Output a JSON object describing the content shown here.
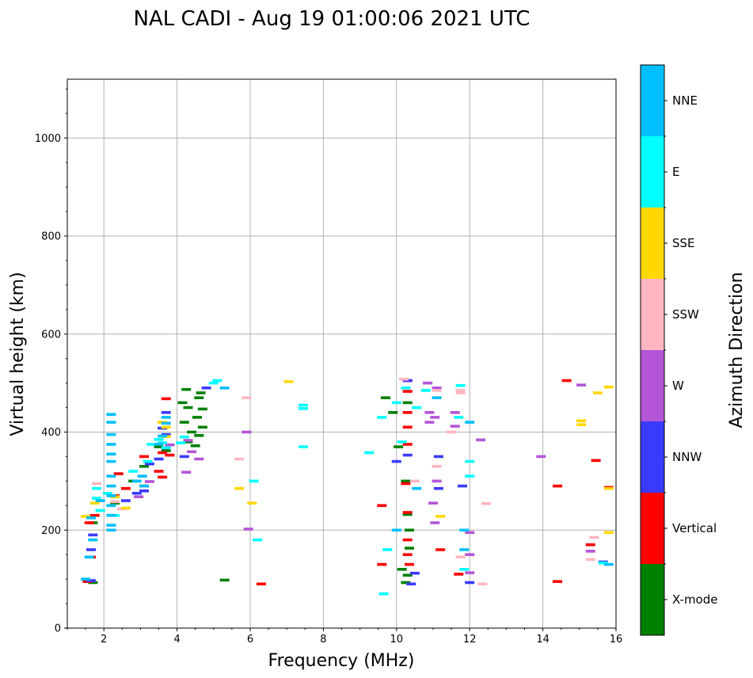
{
  "chart_data": {
    "type": "scatter",
    "title": "NAL CADI - Aug 19 01:00:06 2021 UTC",
    "xlabel": "Frequency (MHz)",
    "ylabel": "Virtual height (km)",
    "xlim": [
      1,
      16
    ],
    "ylim": [
      0,
      1120
    ],
    "xticks": [
      2,
      4,
      6,
      8,
      10,
      12,
      14,
      16
    ],
    "yticks": [
      0,
      200,
      400,
      600,
      800,
      1000
    ],
    "grid": true,
    "colorbar": {
      "label": "Azimuth Direction",
      "categories": [
        {
          "name": "X-mode",
          "color": "#008000"
        },
        {
          "name": "Vertical",
          "color": "#ff0000"
        },
        {
          "name": "NNW",
          "color": "#3a3aff"
        },
        {
          "name": "W",
          "color": "#b455d8"
        },
        {
          "name": "SSW",
          "color": "#ffb6c1"
        },
        {
          "name": "SSE",
          "color": "#ffd700"
        },
        {
          "name": "E",
          "color": "#00ffff"
        },
        {
          "name": "NNE",
          "color": "#00bfff"
        }
      ]
    },
    "series": [
      {
        "name": "X-mode",
        "points": [
          [
            4.25,
            487
          ],
          [
            4.6,
            470
          ],
          [
            4.15,
            460
          ],
          [
            4.3,
            450
          ],
          [
            4.55,
            430
          ],
          [
            4.2,
            420
          ],
          [
            4.4,
            400
          ],
          [
            4.6,
            393
          ],
          [
            4.3,
            380
          ],
          [
            4.5,
            372
          ],
          [
            3.5,
            370
          ],
          [
            3.7,
            362
          ],
          [
            3.1,
            330
          ],
          [
            2.8,
            300
          ],
          [
            2.3,
            255
          ],
          [
            1.7,
            215
          ],
          [
            1.7,
            93
          ],
          [
            5.3,
            98
          ],
          [
            10.3,
            460
          ],
          [
            10.05,
            370
          ],
          [
            10.25,
            300
          ],
          [
            10.35,
            200
          ],
          [
            10.35,
            163
          ],
          [
            10.15,
            120
          ],
          [
            10.3,
            108
          ],
          [
            9.7,
            470
          ],
          [
            9.9,
            440
          ],
          [
            10.3,
            232
          ],
          [
            10.25,
            93
          ],
          [
            4.65,
            480
          ],
          [
            4.7,
            447
          ],
          [
            4.7,
            410
          ]
        ]
      },
      {
        "name": "Vertical",
        "points": [
          [
            3.7,
            468
          ],
          [
            3.6,
            358
          ],
          [
            3.8,
            353
          ],
          [
            3.1,
            350
          ],
          [
            3.5,
            320
          ],
          [
            3.1,
            290
          ],
          [
            2.6,
            285
          ],
          [
            2.4,
            315
          ],
          [
            2.3,
            270
          ],
          [
            1.75,
            230
          ],
          [
            1.6,
            215
          ],
          [
            1.65,
            145
          ],
          [
            1.55,
            95
          ],
          [
            6.3,
            90
          ],
          [
            10.3,
            505
          ],
          [
            10.3,
            483
          ],
          [
            10.3,
            440
          ],
          [
            10.3,
            410
          ],
          [
            10.3,
            375
          ],
          [
            10.25,
            295
          ],
          [
            9.6,
            250
          ],
          [
            10.3,
            236
          ],
          [
            10.3,
            180
          ],
          [
            10.3,
            150
          ],
          [
            10.35,
            130
          ],
          [
            9.6,
            130
          ],
          [
            11.2,
            160
          ],
          [
            11.7,
            110
          ],
          [
            14.4,
            95
          ],
          [
            14.4,
            290
          ],
          [
            14.65,
            505
          ],
          [
            15.45,
            342
          ],
          [
            15.3,
            170
          ],
          [
            15.8,
            287
          ],
          [
            3.6,
            308
          ]
        ]
      },
      {
        "name": "NNW",
        "points": [
          [
            3.7,
            440
          ],
          [
            3.6,
            408
          ],
          [
            3.7,
            395
          ],
          [
            3.7,
            368
          ],
          [
            3.5,
            345
          ],
          [
            3.25,
            335
          ],
          [
            3.1,
            280
          ],
          [
            2.9,
            275
          ],
          [
            2.6,
            260
          ],
          [
            1.7,
            190
          ],
          [
            1.65,
            160
          ],
          [
            1.65,
            97
          ],
          [
            4.2,
            350
          ],
          [
            10.3,
            505
          ],
          [
            10.0,
            340
          ],
          [
            10.3,
            353
          ],
          [
            10.4,
            90
          ],
          [
            11.15,
            285
          ],
          [
            11.15,
            350
          ],
          [
            11.8,
            290
          ],
          [
            12.0,
            93
          ],
          [
            15.65,
            135
          ],
          [
            4.8,
            490
          ],
          [
            10.5,
            112
          ]
        ]
      },
      {
        "name": "W",
        "points": [
          [
            4.25,
            318
          ],
          [
            4.3,
            383
          ],
          [
            4.4,
            360
          ],
          [
            4.6,
            345
          ],
          [
            3.8,
            374
          ],
          [
            2.95,
            268
          ],
          [
            3.25,
            299
          ],
          [
            5.9,
            400
          ],
          [
            5.95,
            202
          ],
          [
            10.85,
            500
          ],
          [
            11.1,
            490
          ],
          [
            10.9,
            440
          ],
          [
            11.05,
            430
          ],
          [
            10.9,
            420
          ],
          [
            11.1,
            300
          ],
          [
            11.6,
            440
          ],
          [
            12.3,
            384
          ],
          [
            12.0,
            195
          ],
          [
            12.0,
            113
          ],
          [
            11.6,
            412
          ],
          [
            11.0,
            255
          ],
          [
            15.3,
            157
          ],
          [
            15.05,
            496
          ],
          [
            13.95,
            350
          ],
          [
            11.05,
            215
          ],
          [
            12.0,
            150
          ]
        ]
      },
      {
        "name": "SSW",
        "points": [
          [
            1.8,
            295
          ],
          [
            2.2,
            270
          ],
          [
            2.3,
            258
          ],
          [
            2.5,
            243
          ],
          [
            5.7,
            345
          ],
          [
            5.9,
            470
          ],
          [
            10.2,
            508
          ],
          [
            10.5,
            300
          ],
          [
            11.1,
            485
          ],
          [
            11.1,
            330
          ],
          [
            11.75,
            485
          ],
          [
            11.75,
            480
          ],
          [
            12.45,
            254
          ],
          [
            12.35,
            90
          ],
          [
            11.5,
            400
          ],
          [
            15.4,
            185
          ],
          [
            15.3,
            140
          ],
          [
            11.75,
            145
          ]
        ]
      },
      {
        "name": "SSE",
        "points": [
          [
            1.75,
            255
          ],
          [
            1.5,
            228
          ],
          [
            2.3,
            268
          ],
          [
            2.6,
            245
          ],
          [
            3.6,
            420
          ],
          [
            3.7,
            410
          ],
          [
            3.7,
            391
          ],
          [
            5.7,
            285
          ],
          [
            7.05,
            503
          ],
          [
            15.05,
            423
          ],
          [
            15.05,
            415
          ],
          [
            15.5,
            480
          ],
          [
            15.8,
            492
          ],
          [
            15.8,
            285
          ],
          [
            15.8,
            195
          ],
          [
            11.2,
            228
          ],
          [
            6.05,
            255
          ]
        ]
      },
      {
        "name": "E",
        "points": [
          [
            1.8,
            285
          ],
          [
            1.8,
            265
          ],
          [
            1.9,
            240
          ],
          [
            2.1,
            275
          ],
          [
            2.3,
            230
          ],
          [
            2.8,
            320
          ],
          [
            3.2,
            340
          ],
          [
            3.3,
            375
          ],
          [
            3.6,
            378
          ],
          [
            3.7,
            368
          ],
          [
            3.5,
            385
          ],
          [
            4.1,
            378
          ],
          [
            4.2,
            390
          ],
          [
            6.2,
            180
          ],
          [
            7.45,
            455
          ],
          [
            7.45,
            448
          ],
          [
            7.45,
            370
          ],
          [
            9.25,
            358
          ],
          [
            10.0,
            460
          ],
          [
            10.15,
            380
          ],
          [
            9.6,
            430
          ],
          [
            9.75,
            160
          ],
          [
            10.25,
            490
          ],
          [
            10.55,
            450
          ],
          [
            10.8,
            485
          ],
          [
            11.7,
            430
          ],
          [
            11.75,
            495
          ],
          [
            11.85,
            120
          ],
          [
            12.0,
            340
          ],
          [
            12.0,
            310
          ],
          [
            9.65,
            70
          ],
          [
            15.65,
            133
          ],
          [
            5.0,
            500
          ],
          [
            5.1,
            505
          ],
          [
            6.1,
            300
          ]
        ]
      },
      {
        "name": "NNE",
        "points": [
          [
            2.2,
            436
          ],
          [
            2.2,
            420
          ],
          [
            2.2,
            395
          ],
          [
            2.2,
            375
          ],
          [
            2.2,
            355
          ],
          [
            2.2,
            340
          ],
          [
            2.2,
            310
          ],
          [
            2.2,
            290
          ],
          [
            2.2,
            270
          ],
          [
            2.2,
            250
          ],
          [
            2.2,
            230
          ],
          [
            2.2,
            210
          ],
          [
            2.2,
            200
          ],
          [
            3.7,
            430
          ],
          [
            3.7,
            418
          ],
          [
            3.6,
            392
          ],
          [
            3.5,
            375
          ],
          [
            3.1,
            290
          ],
          [
            3.05,
            310
          ],
          [
            2.9,
            300
          ],
          [
            1.9,
            260
          ],
          [
            1.65,
            225
          ],
          [
            1.7,
            180
          ],
          [
            1.6,
            145
          ],
          [
            1.5,
            100
          ],
          [
            11.1,
            470
          ],
          [
            12.0,
            420
          ],
          [
            11.85,
            200
          ],
          [
            11.85,
            160
          ],
          [
            10.55,
            285
          ],
          [
            15.8,
            130
          ],
          [
            5.3,
            490
          ],
          [
            10.0,
            200
          ]
        ]
      }
    ]
  }
}
